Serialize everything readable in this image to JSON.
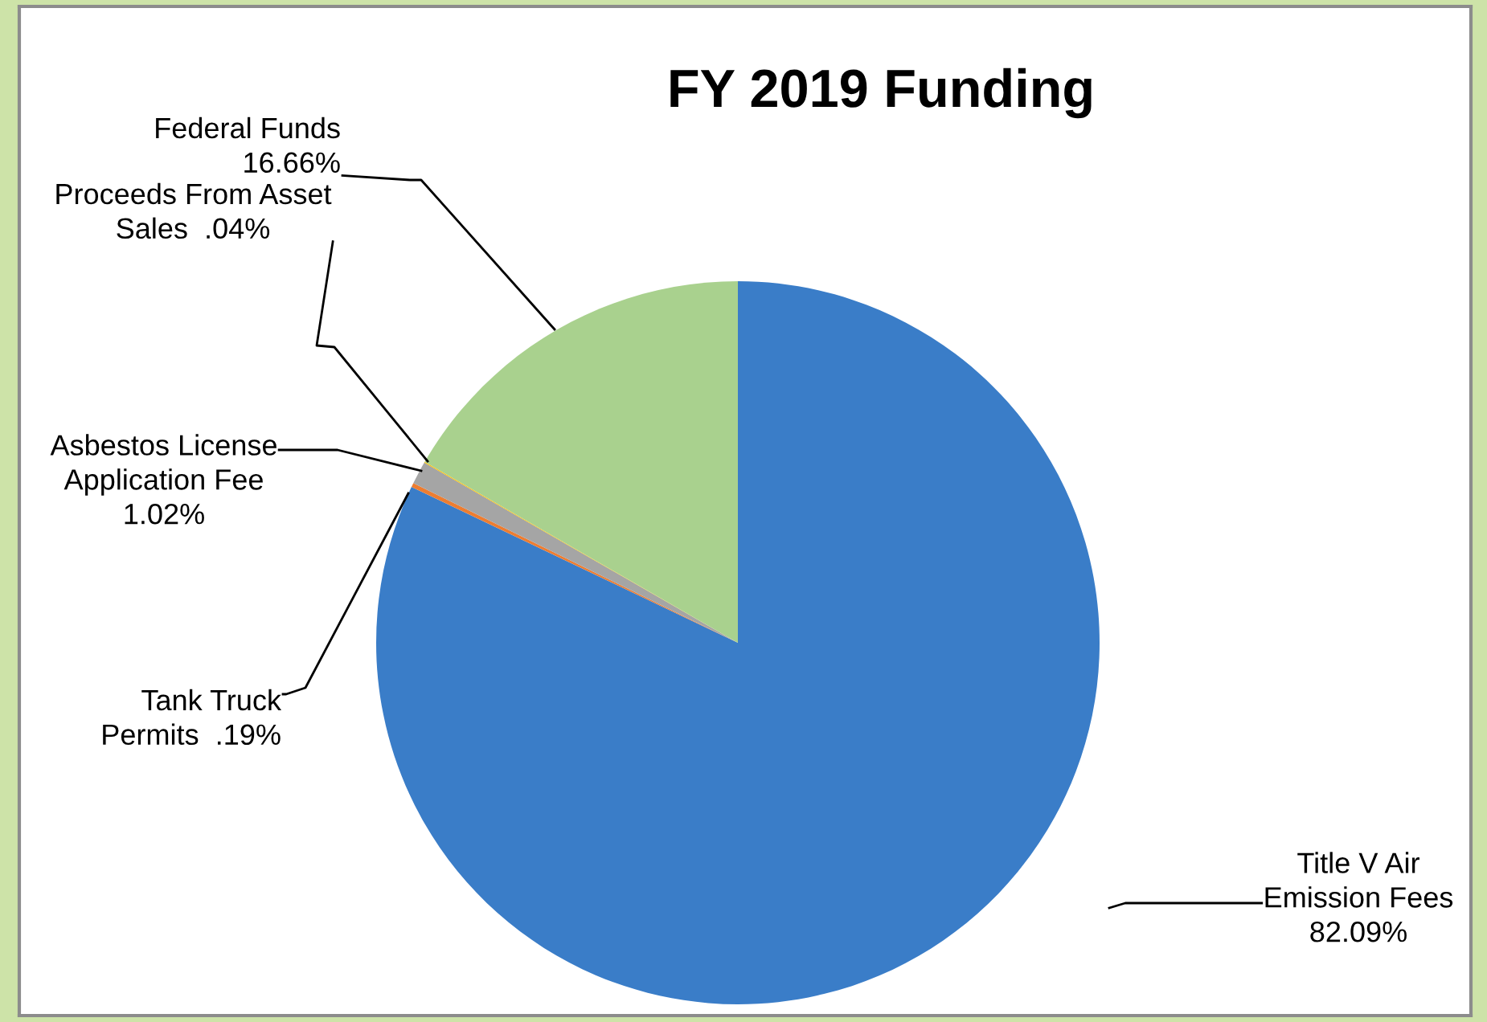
{
  "chart_data": {
    "type": "pie",
    "title": "FY 2019 Funding",
    "categories": [
      "Title V Air\nEmission Fees",
      "Tank Truck\nPermits",
      "Asbestos License\nApplication Fee",
      "Proceeds From Asset\nSales",
      "Federal Funds"
    ],
    "values": [
      82.09,
      0.19,
      1.02,
      0.04,
      16.66
    ],
    "value_labels": [
      "82.09%",
      ".19%",
      "1.02%",
      ".04%",
      "16.66%"
    ],
    "colors": [
      "#3a7dc8",
      "#ed7d31",
      "#a5a5a5",
      "#ffc000",
      "#a9d18e"
    ],
    "legend": false
  }
}
